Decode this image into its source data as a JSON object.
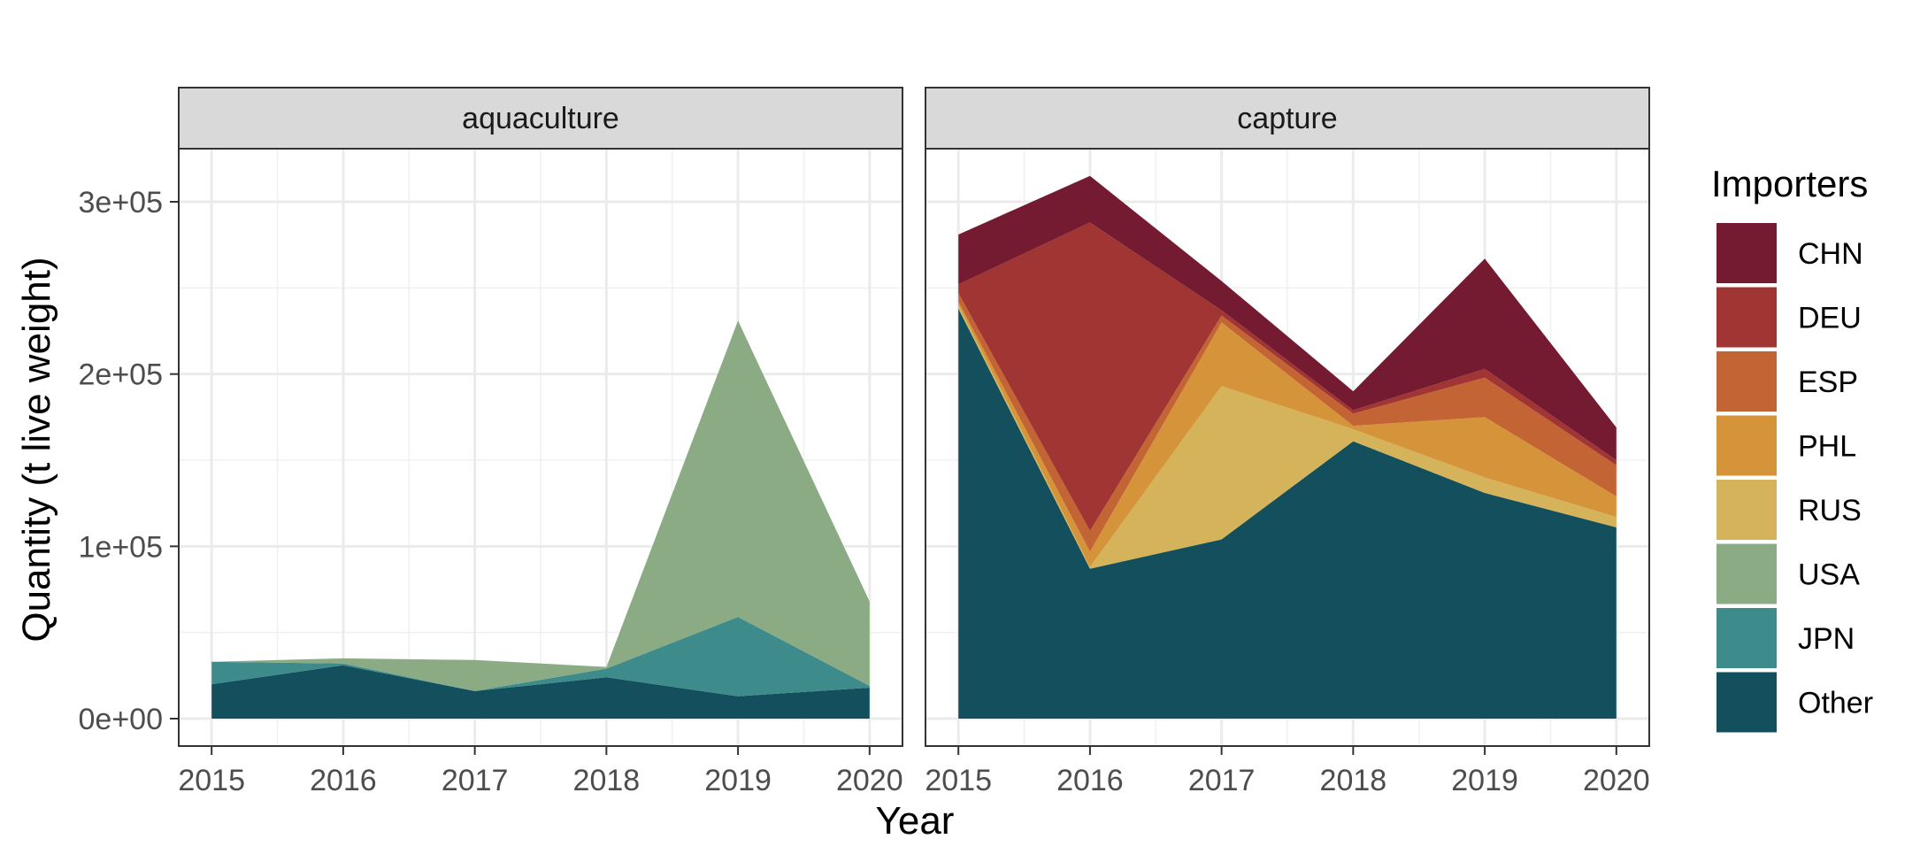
{
  "chart_data": {
    "type": "area",
    "stacked": true,
    "xlabel": "Year",
    "ylabel": "Quantity (t live weight)",
    "x": [
      2015,
      2016,
      2017,
      2018,
      2019,
      2020
    ],
    "x_ticks": [
      "2015",
      "2016",
      "2017",
      "2018",
      "2019",
      "2020"
    ],
    "ylim": [
      0,
      300000
    ],
    "y_ticks": [
      0,
      100000,
      200000,
      300000
    ],
    "y_tick_labels": [
      "0e+00",
      "1e+05",
      "2e+05",
      "3e+05"
    ],
    "grid": true,
    "legend": {
      "title": "Importers",
      "position": "right",
      "entries": [
        "CHN",
        "DEU",
        "ESP",
        "PHL",
        "RUS",
        "USA",
        "JPN",
        "Other"
      ]
    },
    "colors": {
      "CHN": "#741b31",
      "DEU": "#a13533",
      "ESP": "#c26434",
      "PHL": "#d6943a",
      "RUS": "#d4b35a",
      "USA": "#8aab84",
      "JPN": "#3e8b8c",
      "Other": "#134f5c"
    },
    "stack_order": [
      "Other",
      "JPN",
      "USA",
      "RUS",
      "PHL",
      "ESP",
      "DEU",
      "CHN"
    ],
    "panels": [
      {
        "strip": "aquaculture",
        "series": [
          {
            "name": "Other",
            "values": [
              20000,
              31000,
              16000,
              24000,
              13000,
              18000
            ]
          },
          {
            "name": "JPN",
            "values": [
              13000,
              1000,
              0,
              5000,
              46000,
              1000
            ]
          },
          {
            "name": "USA",
            "values": [
              0,
              3000,
              18000,
              1000,
              172000,
              49000
            ]
          },
          {
            "name": "RUS",
            "values": [
              0,
              0,
              0,
              0,
              0,
              0
            ]
          },
          {
            "name": "PHL",
            "values": [
              0,
              0,
              0,
              0,
              0,
              0
            ]
          },
          {
            "name": "ESP",
            "values": [
              0,
              0,
              0,
              0,
              0,
              0
            ]
          },
          {
            "name": "DEU",
            "values": [
              0,
              0,
              0,
              0,
              0,
              0
            ]
          },
          {
            "name": "CHN",
            "values": [
              0,
              0,
              0,
              0,
              0,
              0
            ]
          }
        ]
      },
      {
        "strip": "capture",
        "series": [
          {
            "name": "Other",
            "values": [
              238000,
              87000,
              104000,
              161000,
              131000,
              111000
            ]
          },
          {
            "name": "JPN",
            "values": [
              0,
              0,
              0,
              0,
              0,
              0
            ]
          },
          {
            "name": "USA",
            "values": [
              0,
              0,
              0,
              0,
              0,
              0
            ]
          },
          {
            "name": "RUS",
            "values": [
              2000,
              1000,
              89000,
              7000,
              9000,
              6000
            ]
          },
          {
            "name": "PHL",
            "values": [
              2000,
              9000,
              37000,
              2000,
              35000,
              12000
            ]
          },
          {
            "name": "ESP",
            "values": [
              5000,
              12000,
              4000,
              7000,
              23000,
              18000
            ]
          },
          {
            "name": "DEU",
            "values": [
              5000,
              179000,
              3000,
              2000,
              5000,
              3000
            ]
          },
          {
            "name": "CHN",
            "values": [
              29000,
              27000,
              17000,
              11000,
              64000,
              19000
            ]
          }
        ]
      }
    ]
  }
}
